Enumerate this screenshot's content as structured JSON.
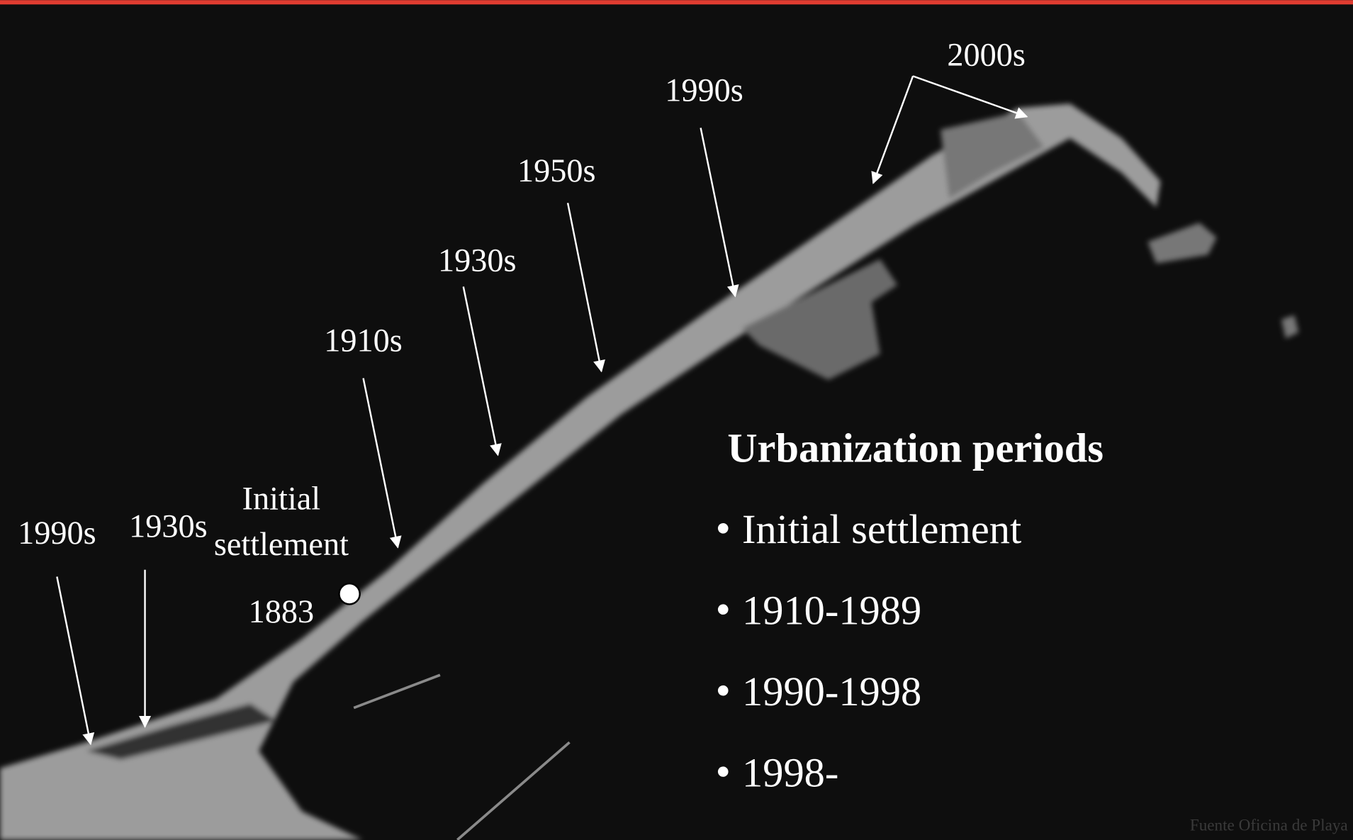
{
  "labels": {
    "l2000s": "2000s",
    "l1990s_east": "1990s",
    "l1950s": "1950s",
    "l1930s_center": "1930s",
    "l1910s": "1910s",
    "initial": [
      "Initial",
      "settlement"
    ],
    "year_1883": "1883",
    "l1990s_west": "1990s",
    "l1930s_west": "1930s"
  },
  "legend": {
    "title": "Urbanization periods",
    "items": [
      "Initial settlement",
      "1910-1989",
      "1990-1998",
      "1998-"
    ]
  },
  "source": "Fuente Oficina de Playa"
}
